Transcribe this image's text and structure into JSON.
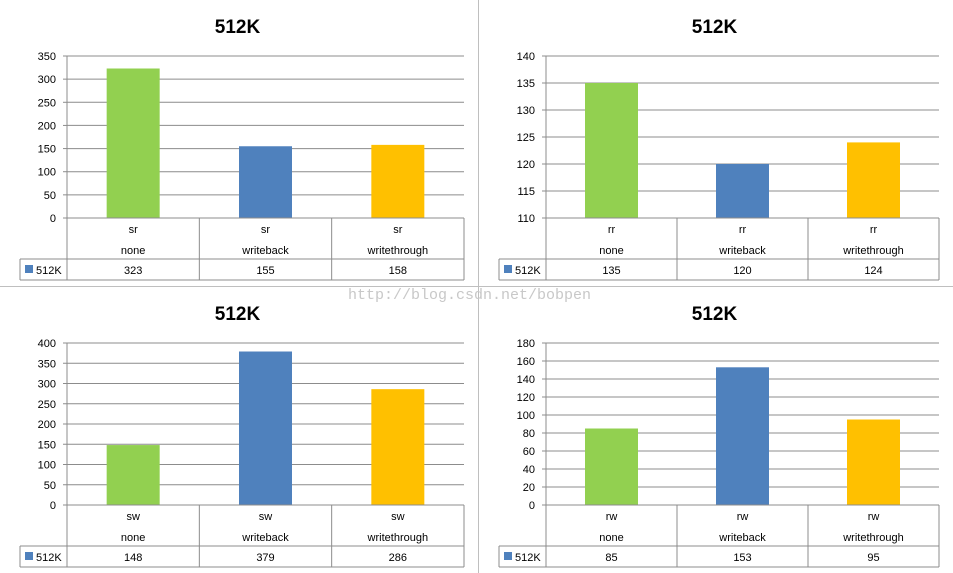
{
  "watermark": "http://blog.csdn.net/bobpen",
  "colors": {
    "none": "#92d050",
    "writeback": "#4f81bd",
    "writethrough": "#ffc000",
    "legend": "#4f81bd"
  },
  "chart_data": [
    {
      "type": "bar",
      "title": "512K",
      "categories": [
        [
          "sr",
          "none"
        ],
        [
          "sr",
          "writeback"
        ],
        [
          "sr",
          "writethrough"
        ]
      ],
      "series": [
        {
          "name": "512K",
          "values": [
            323,
            155,
            158
          ]
        }
      ],
      "ylim": [
        0,
        350
      ],
      "yticks": [
        0,
        50,
        100,
        150,
        200,
        250,
        300,
        350
      ],
      "grid": true,
      "legend": "data-table"
    },
    {
      "type": "bar",
      "title": "512K",
      "categories": [
        [
          "rr",
          "none"
        ],
        [
          "rr",
          "writeback"
        ],
        [
          "rr",
          "writethrough"
        ]
      ],
      "series": [
        {
          "name": "512K",
          "values": [
            135,
            120,
            124
          ]
        }
      ],
      "ylim": [
        110,
        140
      ],
      "yticks": [
        110,
        115,
        120,
        125,
        130,
        135,
        140
      ],
      "grid": true,
      "legend": "data-table"
    },
    {
      "type": "bar",
      "title": "512K",
      "categories": [
        [
          "sw",
          "none"
        ],
        [
          "sw",
          "writeback"
        ],
        [
          "sw",
          "writethrough"
        ]
      ],
      "series": [
        {
          "name": "512K",
          "values": [
            148,
            379,
            286
          ]
        }
      ],
      "ylim": [
        0,
        400
      ],
      "yticks": [
        0,
        50,
        100,
        150,
        200,
        250,
        300,
        350,
        400
      ],
      "grid": true,
      "legend": "data-table"
    },
    {
      "type": "bar",
      "title": "512K",
      "categories": [
        [
          "rw",
          "none"
        ],
        [
          "rw",
          "writeback"
        ],
        [
          "rw",
          "writethrough"
        ]
      ],
      "series": [
        {
          "name": "512K",
          "values": [
            85,
            153,
            95
          ]
        }
      ],
      "ylim": [
        0,
        180
      ],
      "yticks": [
        0,
        20,
        40,
        60,
        80,
        100,
        120,
        140,
        160,
        180
      ],
      "grid": true,
      "legend": "data-table"
    }
  ]
}
